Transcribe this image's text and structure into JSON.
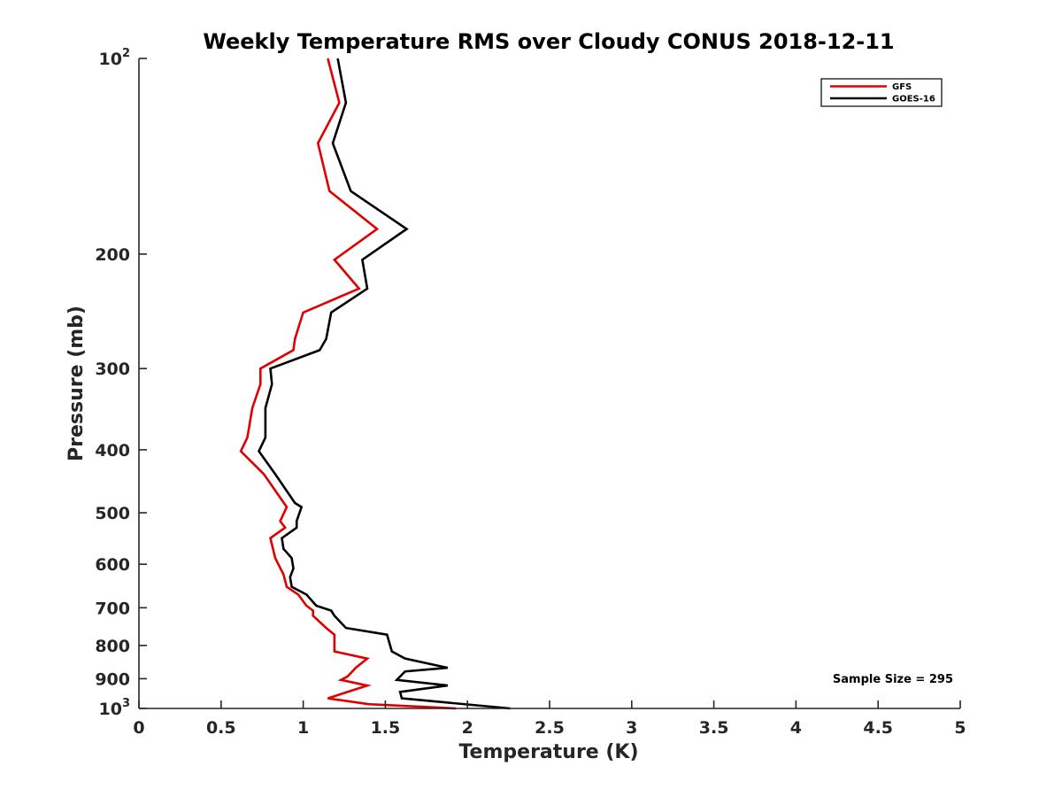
{
  "chart_data": {
    "type": "line",
    "title": "Weekly Temperature RMS over Cloudy CONUS 2018-12-11",
    "xlabel": "Temperature (K)",
    "ylabel": "Pressure (mb)",
    "xlim": [
      0,
      5
    ],
    "ylim": [
      100,
      1000
    ],
    "y_scale": "log",
    "y_reversed": true,
    "grid": false,
    "legend_position": "top-right",
    "x_ticks": [
      {
        "value": 0,
        "label": "0"
      },
      {
        "value": 0.5,
        "label": "0.5"
      },
      {
        "value": 1,
        "label": "1"
      },
      {
        "value": 1.5,
        "label": "1.5"
      },
      {
        "value": 2,
        "label": "2"
      },
      {
        "value": 2.5,
        "label": "2.5"
      },
      {
        "value": 3,
        "label": "3"
      },
      {
        "value": 3.5,
        "label": "3.5"
      },
      {
        "value": 4,
        "label": "4"
      },
      {
        "value": 4.5,
        "label": "4.5"
      },
      {
        "value": 5,
        "label": "5"
      }
    ],
    "y_ticks": [
      {
        "value": 100,
        "label": "10",
        "sup": "2"
      },
      {
        "value": 200,
        "label": "200"
      },
      {
        "value": 300,
        "label": "300"
      },
      {
        "value": 400,
        "label": "400"
      },
      {
        "value": 500,
        "label": "500"
      },
      {
        "value": 600,
        "label": "600"
      },
      {
        "value": 700,
        "label": "700"
      },
      {
        "value": 800,
        "label": "800"
      },
      {
        "value": 900,
        "label": "900"
      },
      {
        "value": 1000,
        "label": "10",
        "sup": "3"
      }
    ],
    "annotation": "Sample Size = 295",
    "series": [
      {
        "name": "GFS",
        "color": "#e00000",
        "points": [
          [
            1.15,
            100
          ],
          [
            1.22,
            117
          ],
          [
            1.09,
            135
          ],
          [
            1.16,
            160
          ],
          [
            1.45,
            183
          ],
          [
            1.19,
            204
          ],
          [
            1.34,
            226
          ],
          [
            1.0,
            246
          ],
          [
            0.95,
            270
          ],
          [
            0.94,
            281
          ],
          [
            0.74,
            300
          ],
          [
            0.74,
            317
          ],
          [
            0.69,
            345
          ],
          [
            0.66,
            383
          ],
          [
            0.62,
            402
          ],
          [
            0.76,
            436
          ],
          [
            0.9,
            490
          ],
          [
            0.86,
            515
          ],
          [
            0.89,
            527
          ],
          [
            0.8,
            547
          ],
          [
            0.83,
            587
          ],
          [
            0.88,
            622
          ],
          [
            0.9,
            650
          ],
          [
            0.97,
            668
          ],
          [
            1.02,
            695
          ],
          [
            1.06,
            707
          ],
          [
            1.06,
            720
          ],
          [
            1.14,
            752
          ],
          [
            1.19,
            770
          ],
          [
            1.19,
            817
          ],
          [
            1.39,
            838
          ],
          [
            1.32,
            866
          ],
          [
            1.27,
            893
          ],
          [
            1.23,
            904
          ],
          [
            1.39,
            922
          ],
          [
            1.15,
            965
          ],
          [
            1.4,
            985
          ],
          [
            1.93,
            1000
          ]
        ]
      },
      {
        "name": "GOES-16",
        "color": "#000000",
        "points": [
          [
            1.21,
            100
          ],
          [
            1.26,
            117
          ],
          [
            1.18,
            135
          ],
          [
            1.29,
            160
          ],
          [
            1.63,
            183
          ],
          [
            1.36,
            204
          ],
          [
            1.39,
            226
          ],
          [
            1.17,
            246
          ],
          [
            1.14,
            270
          ],
          [
            1.1,
            281
          ],
          [
            0.8,
            300
          ],
          [
            0.81,
            317
          ],
          [
            0.77,
            345
          ],
          [
            0.77,
            383
          ],
          [
            0.73,
            402
          ],
          [
            0.83,
            436
          ],
          [
            0.88,
            455
          ],
          [
            0.95,
            483
          ],
          [
            0.99,
            490
          ],
          [
            0.96,
            515
          ],
          [
            0.96,
            527
          ],
          [
            0.87,
            547
          ],
          [
            0.88,
            568
          ],
          [
            0.93,
            587
          ],
          [
            0.94,
            609
          ],
          [
            0.92,
            628
          ],
          [
            0.93,
            650
          ],
          [
            1.02,
            668
          ],
          [
            1.08,
            695
          ],
          [
            1.17,
            707
          ],
          [
            1.19,
            720
          ],
          [
            1.26,
            752
          ],
          [
            1.51,
            770
          ],
          [
            1.54,
            817
          ],
          [
            1.62,
            838
          ],
          [
            1.88,
            866
          ],
          [
            1.62,
            877
          ],
          [
            1.57,
            904
          ],
          [
            1.88,
            922
          ],
          [
            1.59,
            943
          ],
          [
            1.6,
            965
          ],
          [
            2.26,
            1000
          ]
        ]
      }
    ]
  }
}
